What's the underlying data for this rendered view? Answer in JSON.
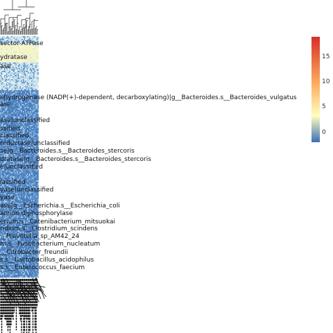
{
  "chart_data": {
    "type": "heatmap",
    "title": "",
    "xlabel": "",
    "ylabel": "",
    "legend": {
      "placement": "right",
      "ticks": [
        0,
        5,
        10,
        15
      ],
      "range": [
        -2,
        19
      ],
      "colors": [
        "#3b6fb6",
        "#ffffbf",
        "#d73027"
      ]
    },
    "row_labels": [
      "sector ATPase",
      "ydratase",
      "ase",
      "ehydrogenase (NADP(+)-dependent, decarboxylating)|g__Bacteroides.s__Bacteroides_vulgatus",
      "ase",
      "ase|unclassified",
      "ssified",
      "classified",
      "reductase|unclassified",
      "se|g__Bacteroides.s__Bacteroides_stercoris",
      "dratase|g__Bacteroides.s__Bacteroides_stercoris",
      "e|unclassified",
      "lassified",
      "yase|unclassified",
      "yase",
      "ase|g__Escherichia.s__Escherichia_coli",
      "amine diphosphorylase",
      "erium.s__Catenibacterium_mitsuokai",
      "ridium.s__Clostridium_scindens",
      "__Prevotella_sp_AM42_24",
      "m.s__Fusobacterium_nucleatum",
      "__Citrobacter_freundii",
      "s.s__Lactobacillus_acidophilus",
      "s.s__Enterococcus_faecium"
    ]
  }
}
